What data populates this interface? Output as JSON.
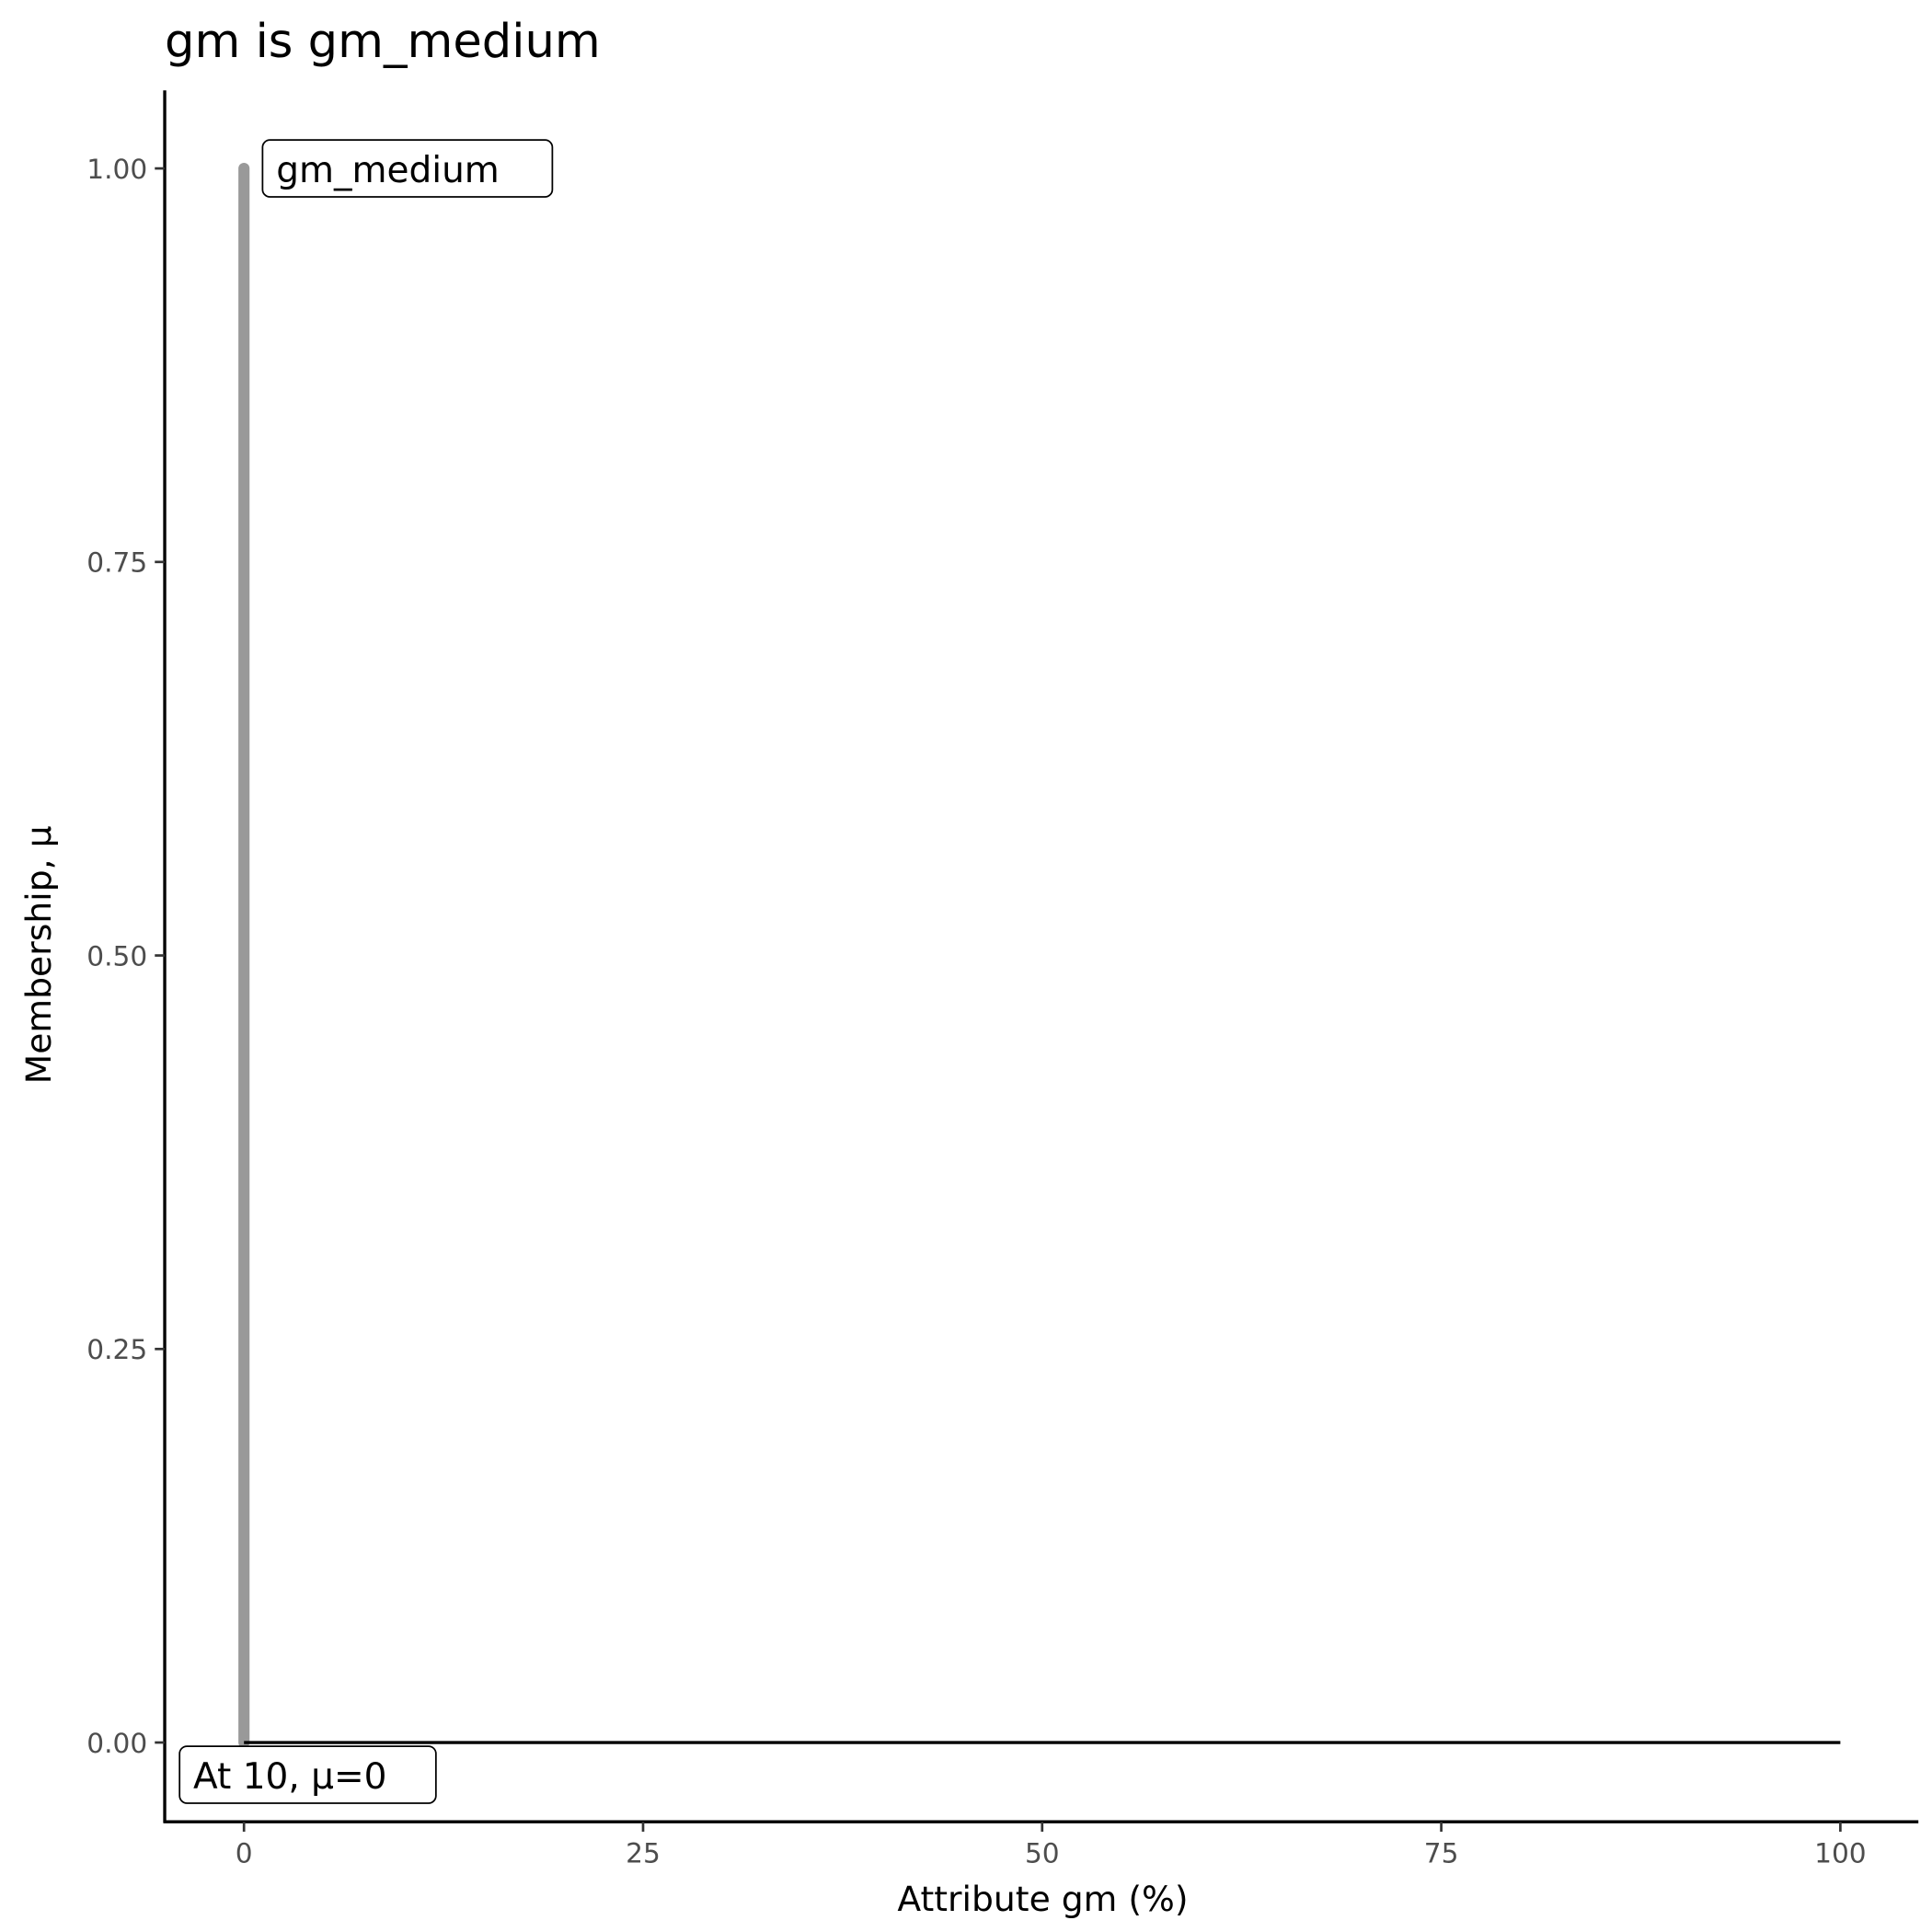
{
  "chart_data": {
    "type": "line",
    "title": "gm is gm_medium",
    "xlabel": "Attribute gm (%)",
    "ylabel": "Membership, μ",
    "xlim": [
      -5,
      105
    ],
    "ylim": [
      -0.05,
      1.05
    ],
    "x_ticks": [
      0,
      25,
      50,
      75,
      100
    ],
    "x_tick_labels": [
      "0",
      "25",
      "50",
      "75",
      "100"
    ],
    "y_ticks": [
      0,
      0.25,
      0.5,
      0.75,
      1
    ],
    "y_tick_labels": [
      "0.00",
      "0.25",
      "0.50",
      "0.75",
      "1.00"
    ],
    "grid": false,
    "series": [
      {
        "color": "#999999",
        "x": [
          0,
          0
        ],
        "y": [
          0,
          1
        ]
      },
      {
        "color": "#000000",
        "x": [
          0,
          100
        ],
        "y": [
          0,
          0
        ]
      }
    ],
    "annotations": [
      {
        "text": "gm_medium",
        "x": 0,
        "y": 1
      },
      {
        "text": "At 10, μ=0",
        "x": 0,
        "y": 0
      }
    ]
  }
}
